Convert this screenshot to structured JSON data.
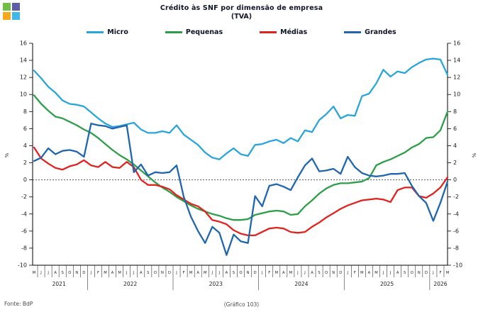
{
  "logo": {
    "colors": [
      "#72BF44",
      "#5C5EA8",
      "#F8A81C",
      "#3FB9E9"
    ]
  },
  "footer": {
    "source": "Fonte: BdP",
    "page": "(Gráfico 103)"
  },
  "chart_data": {
    "type": "line",
    "title": "Crédito às SNF por dimensão de empresa",
    "subtitle": "(TVA)",
    "ylabel_left": "%",
    "ylabel_right": "%",
    "ylim": [
      -10,
      16
    ],
    "yticks": [
      16,
      14,
      12,
      10,
      8,
      6,
      4,
      2,
      0,
      -2,
      -4,
      -6,
      -8,
      -10
    ],
    "grid": false,
    "zero_line": "dashed",
    "legend_position": "top",
    "x_month_letters": [
      "M",
      "J",
      "J",
      "A",
      "S",
      "O",
      "N",
      "D",
      "J",
      "F",
      "M",
      "A",
      "M",
      "J",
      "J",
      "A",
      "S",
      "O",
      "N",
      "D",
      "J",
      "F",
      "M",
      "A",
      "M",
      "J",
      "J",
      "A",
      "S",
      "O",
      "N",
      "D",
      "J",
      "F",
      "M",
      "A",
      "M",
      "J",
      "J",
      "A",
      "S",
      "O",
      "N",
      "D",
      "J",
      "F",
      "M",
      "A",
      "M",
      "J",
      "J",
      "A",
      "S",
      "O",
      "N",
      "D",
      "J",
      "F",
      "M"
    ],
    "year_groups": [
      {
        "year": "2021",
        "months": 8
      },
      {
        "year": "2022",
        "months": 12
      },
      {
        "year": "2023",
        "months": 12
      },
      {
        "year": "2024",
        "months": 12
      },
      {
        "year": "2025",
        "months": 12
      },
      {
        "year": "2026",
        "months": 3
      }
    ],
    "series": [
      {
        "name": "Micro",
        "color": "#29A5DC",
        "values": [
          12.8,
          11.9,
          10.9,
          10.2,
          9.3,
          8.9,
          8.8,
          8.6,
          7.9,
          7.2,
          6.6,
          6.2,
          6.3,
          6.5,
          6.7,
          5.9,
          5.5,
          5.5,
          5.7,
          5.5,
          6.4,
          5.3,
          4.7,
          4.1,
          3.2,
          2.6,
          2.4,
          3.1,
          3.7,
          3.0,
          2.8,
          4.1,
          4.2,
          4.5,
          4.7,
          4.3,
          4.9,
          4.5,
          5.8,
          5.6,
          7.0,
          7.7,
          8.6,
          7.2,
          7.6,
          7.5,
          9.8,
          10.1,
          11.3,
          12.9,
          12.1,
          12.7,
          12.5,
          13.2,
          13.7,
          14.1,
          14.2,
          14.1,
          12.3
        ]
      },
      {
        "name": "Pequenas",
        "color": "#2F9E49",
        "values": [
          9.9,
          8.9,
          8.1,
          7.4,
          7.2,
          6.8,
          6.4,
          5.9,
          5.5,
          4.9,
          4.2,
          3.5,
          2.9,
          2.4,
          1.8,
          1.1,
          0.4,
          -0.3,
          -0.9,
          -1.4,
          -2.0,
          -2.5,
          -3.0,
          -3.4,
          -3.7,
          -4.0,
          -4.2,
          -4.5,
          -4.7,
          -4.7,
          -4.6,
          -4.1,
          -3.9,
          -3.7,
          -3.6,
          -3.7,
          -4.1,
          -4.0,
          -3.1,
          -2.4,
          -1.6,
          -1.0,
          -0.6,
          -0.4,
          -0.4,
          -0.3,
          -0.2,
          0.2,
          1.7,
          2.1,
          2.4,
          2.8,
          3.2,
          3.8,
          4.2,
          4.9,
          5.0,
          5.8,
          8.0
        ]
      },
      {
        "name": "Médias",
        "color": "#E0231E",
        "values": [
          3.8,
          2.5,
          1.9,
          1.4,
          1.2,
          1.6,
          1.8,
          2.3,
          1.7,
          1.5,
          2.1,
          1.5,
          1.4,
          2.1,
          1.5,
          0.0,
          -0.6,
          -0.6,
          -0.8,
          -1.1,
          -1.8,
          -2.3,
          -2.8,
          -3.1,
          -3.7,
          -4.7,
          -4.9,
          -5.2,
          -5.9,
          -6.3,
          -6.5,
          -6.5,
          -6.1,
          -5.7,
          -5.6,
          -5.7,
          -6.1,
          -6.2,
          -6.1,
          -5.5,
          -5.0,
          -4.4,
          -3.9,
          -3.4,
          -3.0,
          -2.7,
          -2.4,
          -2.3,
          -2.2,
          -2.3,
          -2.6,
          -1.2,
          -0.9,
          -0.9,
          -1.9,
          -2.1,
          -1.6,
          -0.9,
          0.3
        ]
      },
      {
        "name": "Grandes",
        "color": "#2066AE",
        "values": [
          2.2,
          2.6,
          3.7,
          3.0,
          3.4,
          3.5,
          3.3,
          2.7,
          6.6,
          6.4,
          6.3,
          6.0,
          6.2,
          6.4,
          0.9,
          1.8,
          0.5,
          0.9,
          0.8,
          0.9,
          1.7,
          -2.0,
          -4.3,
          -6.0,
          -7.4,
          -5.5,
          -6.2,
          -8.8,
          -6.4,
          -7.2,
          -7.4,
          -1.9,
          -3.1,
          -0.7,
          -0.5,
          -0.8,
          -1.2,
          0.3,
          1.7,
          2.5,
          1.0,
          1.1,
          1.3,
          0.7,
          2.7,
          1.5,
          0.8,
          0.5,
          0.4,
          0.5,
          0.7,
          0.7,
          0.8,
          -0.7,
          -1.9,
          -2.7,
          -4.8,
          -2.7,
          -0.2
        ]
      }
    ]
  }
}
